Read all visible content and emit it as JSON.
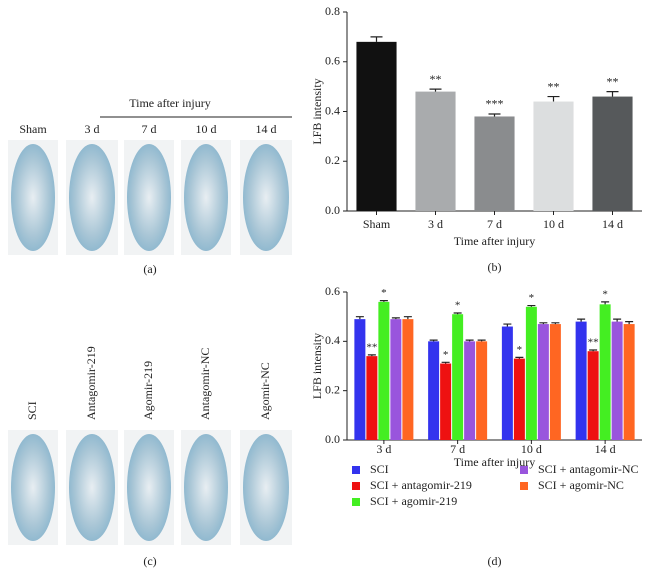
{
  "chart_data": [
    {
      "type": "bar",
      "panel_label": "(b)",
      "x_label": "Time after injury",
      "y_label": "LFB intensity",
      "categories": [
        "Sham",
        "3 d",
        "7 d",
        "10 d",
        "14 d"
      ],
      "values": [
        0.68,
        0.48,
        0.38,
        0.44,
        0.46
      ],
      "errors": [
        0.02,
        0.01,
        0.01,
        0.02,
        0.02
      ],
      "significance": [
        null,
        "**",
        "***",
        "**",
        "**"
      ],
      "colors": [
        "#111111",
        "#a9abad",
        "#8a8c8e",
        "#dcdedf",
        "#56595b"
      ],
      "ylim": [
        0,
        0.8
      ],
      "yticks": [
        {
          "value": 0,
          "label": "0.0"
        },
        0.2,
        0.4,
        0.6,
        0.8
      ]
    },
    {
      "type": "bar",
      "panel_label": "(d)",
      "x_label": "Time after injury",
      "y_label": "LFB intensity",
      "categories": [
        "3 d",
        "7 d",
        "10 d",
        "14 d"
      ],
      "series": [
        {
          "name": "SCI",
          "color": "#3333ee",
          "values": [
            0.49,
            0.4,
            0.46,
            0.48
          ],
          "errors": [
            0.01,
            0.005,
            0.01,
            0.01
          ],
          "significance": [
            null,
            null,
            null,
            null
          ]
        },
        {
          "name": "SCI + antagomir-219",
          "color": "#ee1111",
          "values": [
            0.34,
            0.31,
            0.33,
            0.36
          ],
          "errors": [
            0.005,
            0.005,
            0.005,
            0.005
          ],
          "significance": [
            "**",
            "*",
            "*",
            "**"
          ]
        },
        {
          "name": "SCI + agomir-219",
          "color": "#44ee22",
          "values": [
            0.56,
            0.51,
            0.54,
            0.55
          ],
          "errors": [
            0.005,
            0.005,
            0.005,
            0.01
          ],
          "significance": [
            "*",
            "*",
            "*",
            "*"
          ]
        },
        {
          "name": "SCI + antagomir-NC",
          "color": "#9955dd",
          "values": [
            0.49,
            0.4,
            0.47,
            0.48
          ],
          "errors": [
            0.005,
            0.005,
            0.005,
            0.01
          ],
          "significance": [
            null,
            null,
            null,
            null
          ]
        },
        {
          "name": "SCI + agomir-NC",
          "color": "#ff6622",
          "values": [
            0.49,
            0.4,
            0.47,
            0.47
          ],
          "errors": [
            0.01,
            0.005,
            0.005,
            0.01
          ],
          "significance": [
            null,
            null,
            null,
            null
          ]
        }
      ],
      "ylim": [
        0,
        0.6
      ],
      "yticks": [
        {
          "value": 0,
          "label": "0.0"
        },
        0.2,
        0.4,
        0.6
      ]
    }
  ],
  "image_panels": [
    {
      "label": "(a)",
      "header": "Time after injury",
      "columns": [
        "Sham",
        "3 d",
        "7 d",
        "10 d",
        "14 d"
      ]
    },
    {
      "label": "(c)",
      "columns": [
        "SCI",
        "Antagomir-219",
        "Agomir-219",
        "Antagomir-NC",
        "Agomir-NC"
      ]
    }
  ]
}
